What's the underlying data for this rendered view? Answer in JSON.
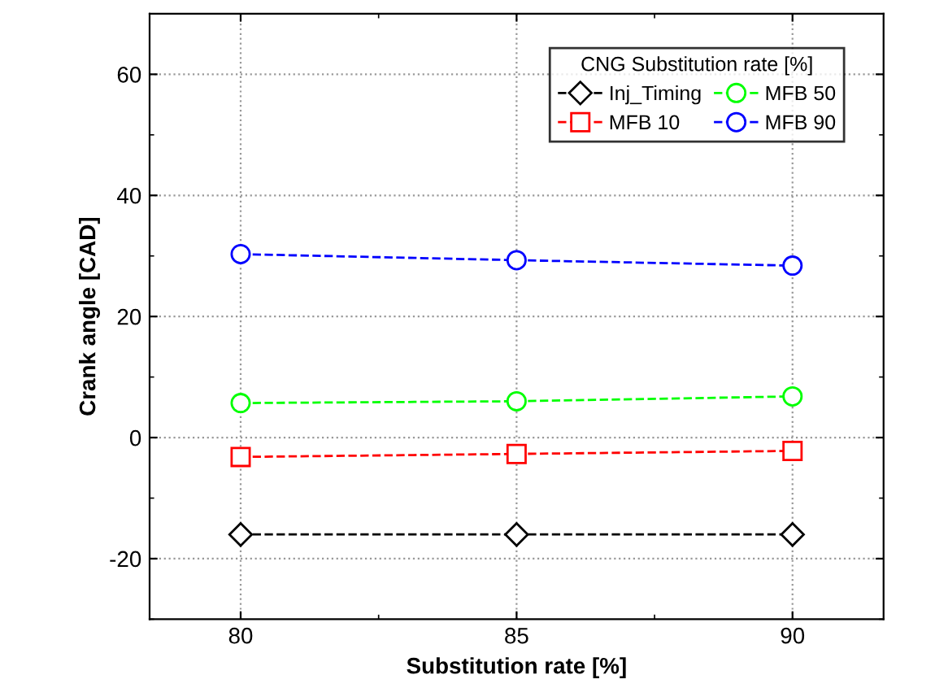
{
  "chart_data": {
    "type": "line",
    "xlabel": "Substitution rate [%]",
    "ylabel": "Crank angle [CAD]",
    "legend_title": "CNG Substitution rate [%]",
    "legend": "top right",
    "grid": true,
    "line_style": "dashed",
    "x": [
      80,
      85,
      90
    ],
    "xlim": [
      78.35,
      91.65
    ],
    "xticks": [
      80,
      85,
      90
    ],
    "ylim": [
      -30,
      70
    ],
    "yticks": [
      -20,
      0,
      20,
      40,
      60
    ],
    "series": [
      {
        "name": "Inj_Timing",
        "color": "#000000",
        "marker": "diamond",
        "values": [
          -16,
          -16,
          -16
        ]
      },
      {
        "name": "MFB 10",
        "color": "#ff0000",
        "marker": "square",
        "values": [
          -3.2,
          -2.7,
          -2.2
        ]
      },
      {
        "name": "MFB 50",
        "color": "#00ff00",
        "marker": "circle",
        "values": [
          5.7,
          6.0,
          6.8
        ]
      },
      {
        "name": "MFB 90",
        "color": "#0000ff",
        "marker": "circle",
        "values": [
          30.3,
          29.3,
          28.4
        ]
      }
    ]
  }
}
